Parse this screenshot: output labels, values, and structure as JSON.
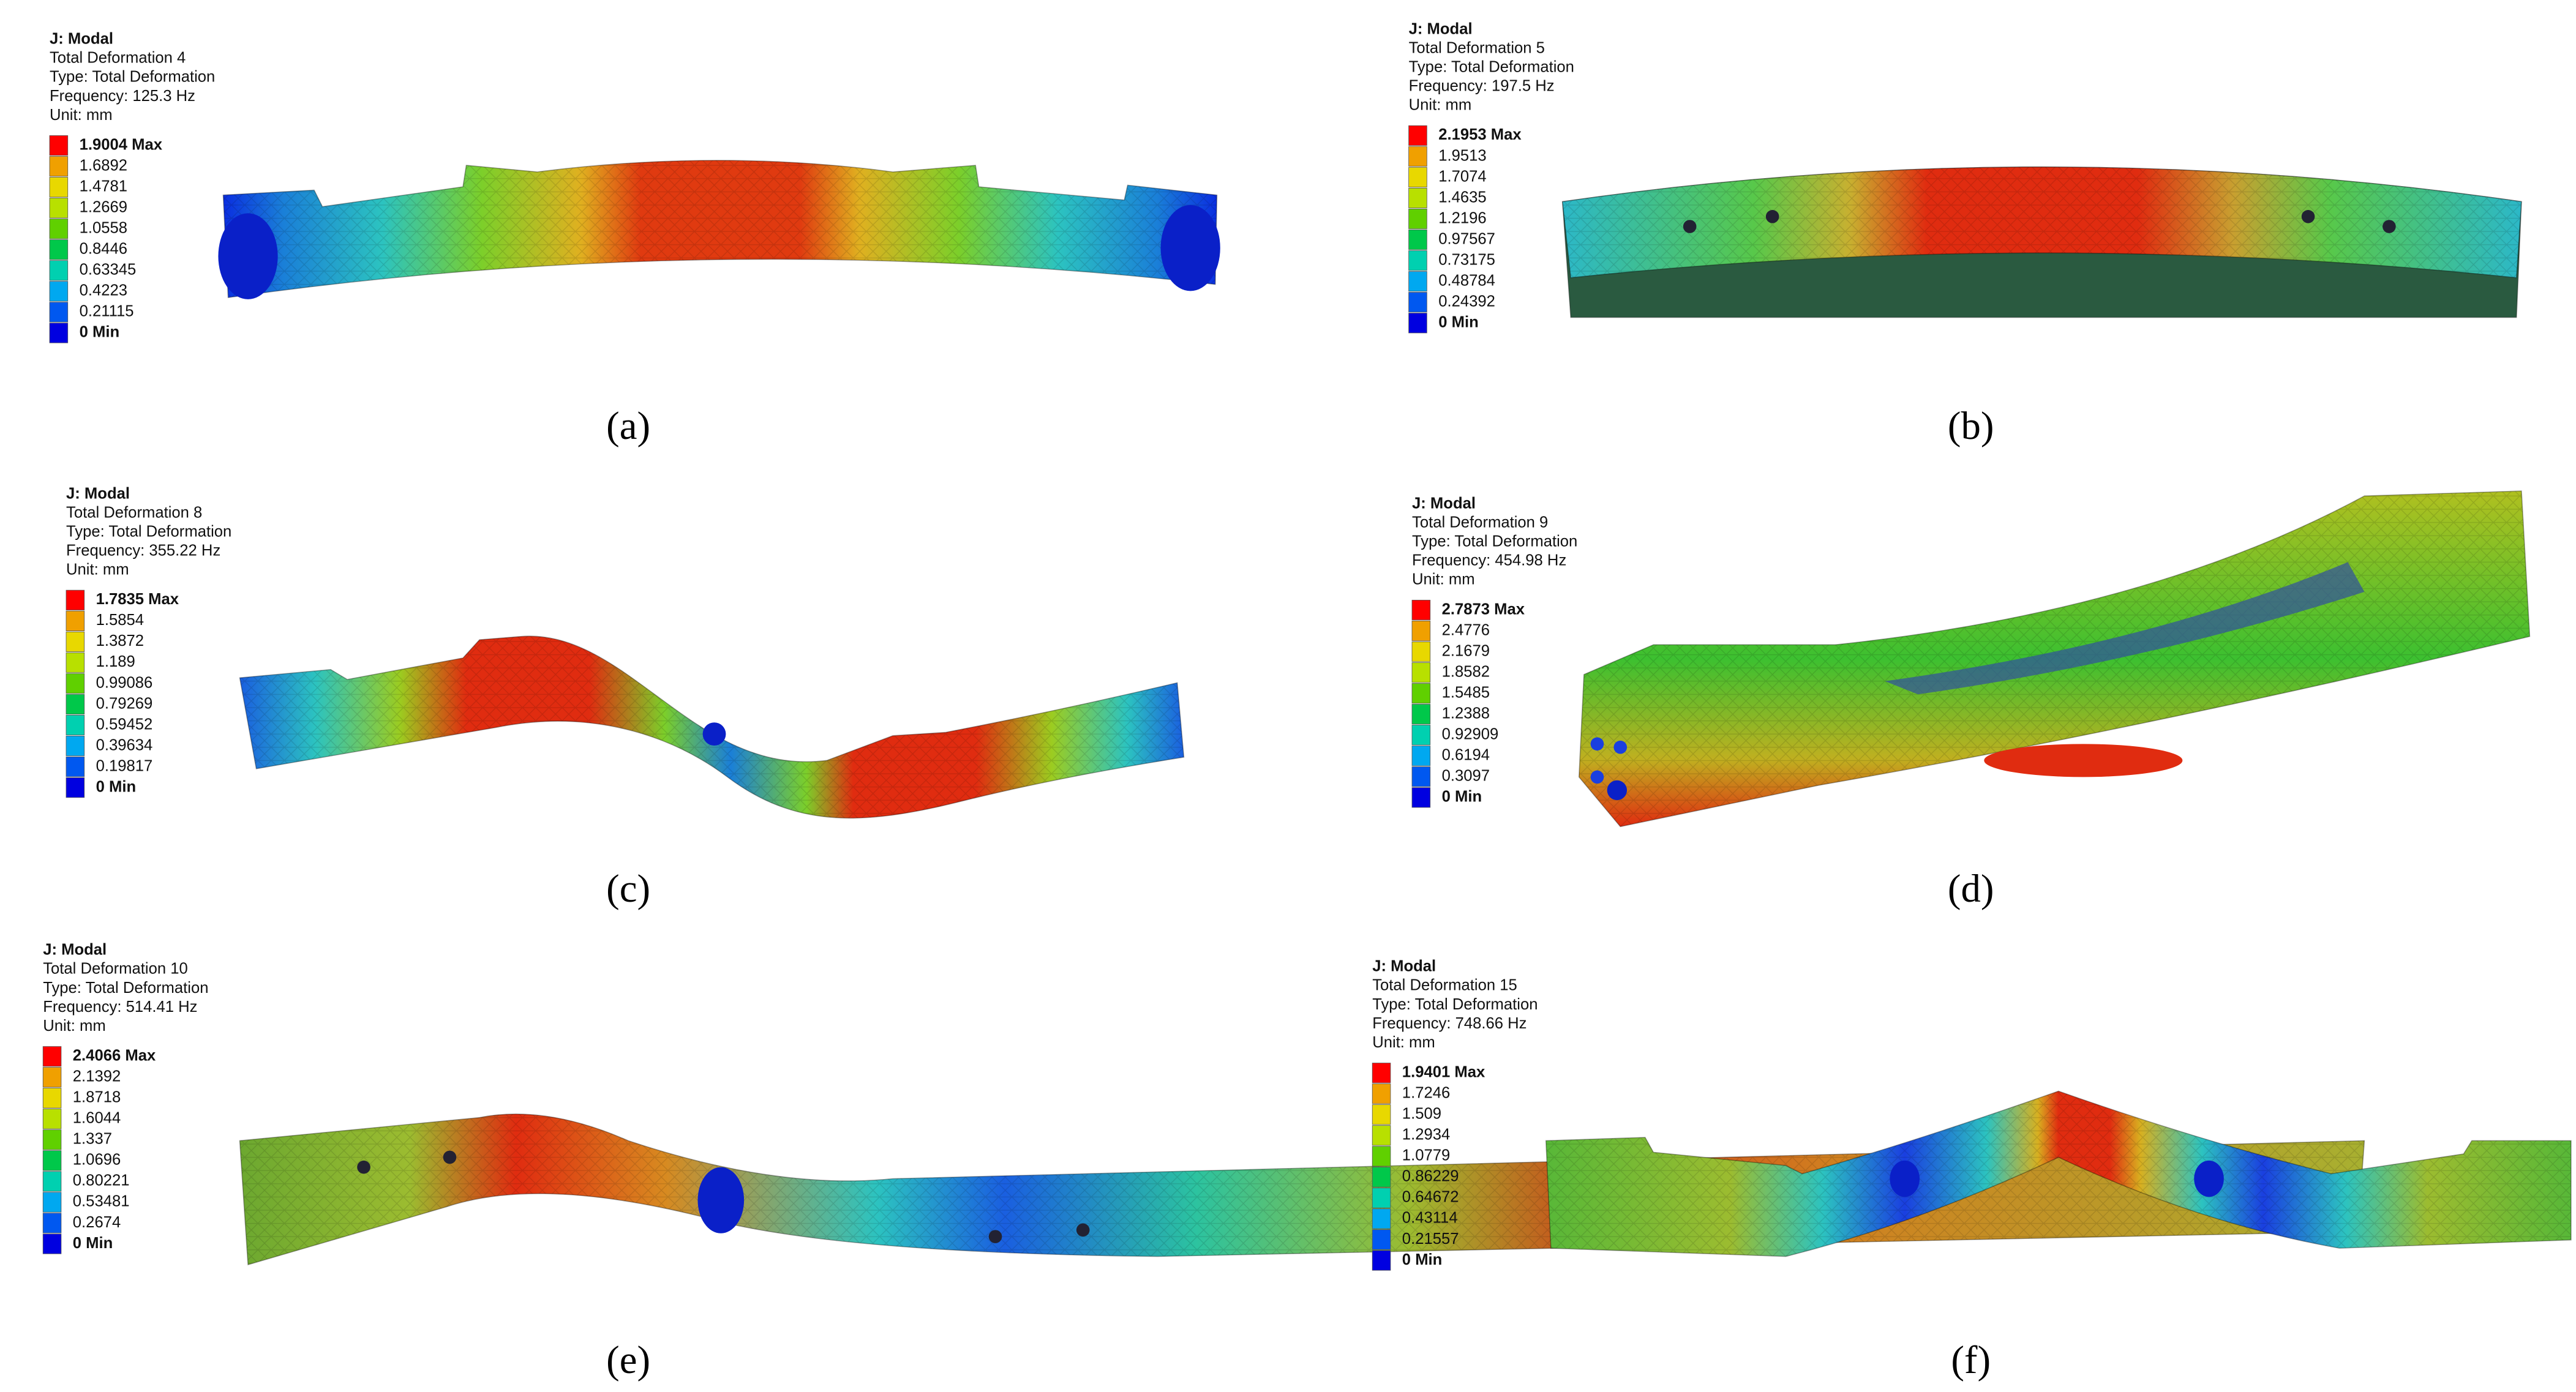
{
  "figure": {
    "panels": [
      {
        "caption": "(a)",
        "header": [
          "J: Modal",
          "Total Deformation 4",
          "Type: Total Deformation",
          "Frequency: 125.3 Hz",
          "Unit: mm"
        ],
        "legend": [
          "1.9004 Max",
          "1.6892",
          "1.4781",
          "1.2669",
          "1.0558",
          "0.8446",
          "0.63345",
          "0.4223",
          "0.21115",
          "0 Min"
        ]
      },
      {
        "caption": "(b)",
        "header": [
          "J: Modal",
          "Total Deformation 5",
          "Type: Total Deformation",
          "Frequency: 197.5 Hz",
          "Unit: mm"
        ],
        "legend": [
          "2.1953 Max",
          "1.9513",
          "1.7074",
          "1.4635",
          "1.2196",
          "0.97567",
          "0.73175",
          "0.48784",
          "0.24392",
          "0 Min"
        ]
      },
      {
        "caption": "(c)",
        "header": [
          "J: Modal",
          "Total Deformation 8",
          "Type: Total Deformation",
          "Frequency: 355.22 Hz",
          "Unit: mm"
        ],
        "legend": [
          "1.7835 Max",
          "1.5854",
          "1.3872",
          "1.189",
          "0.99086",
          "0.79269",
          "0.59452",
          "0.39634",
          "0.19817",
          "0 Min"
        ]
      },
      {
        "caption": "(d)",
        "header": [
          "J: Modal",
          "Total Deformation 9",
          "Type: Total Deformation",
          "Frequency: 454.98 Hz",
          "Unit: mm"
        ],
        "legend": [
          "2.7873 Max",
          "2.4776",
          "2.1679",
          "1.8582",
          "1.5485",
          "1.2388",
          "0.92909",
          "0.6194",
          "0.3097",
          "0 Min"
        ]
      },
      {
        "caption": "(e)",
        "header": [
          "J: Modal",
          "Total Deformation 10",
          "Type: Total Deformation",
          "Frequency: 514.41 Hz",
          "Unit: mm"
        ],
        "legend": [
          "2.4066 Max",
          "2.1392",
          "1.8718",
          "1.6044",
          "1.337",
          "1.0696",
          "0.80221",
          "0.53481",
          "0.2674",
          "0 Min"
        ]
      },
      {
        "caption": "(f)",
        "header": [
          "J: Modal",
          "Total Deformation 15",
          "Type: Total Deformation",
          "Frequency: 748.66 Hz",
          "Unit: mm"
        ],
        "legend": [
          "1.9401 Max",
          "1.7246",
          "1.509",
          "1.2934",
          "1.0779",
          "0.86229",
          "0.64672",
          "0.43114",
          "0.21557",
          "0 Min"
        ]
      }
    ]
  }
}
